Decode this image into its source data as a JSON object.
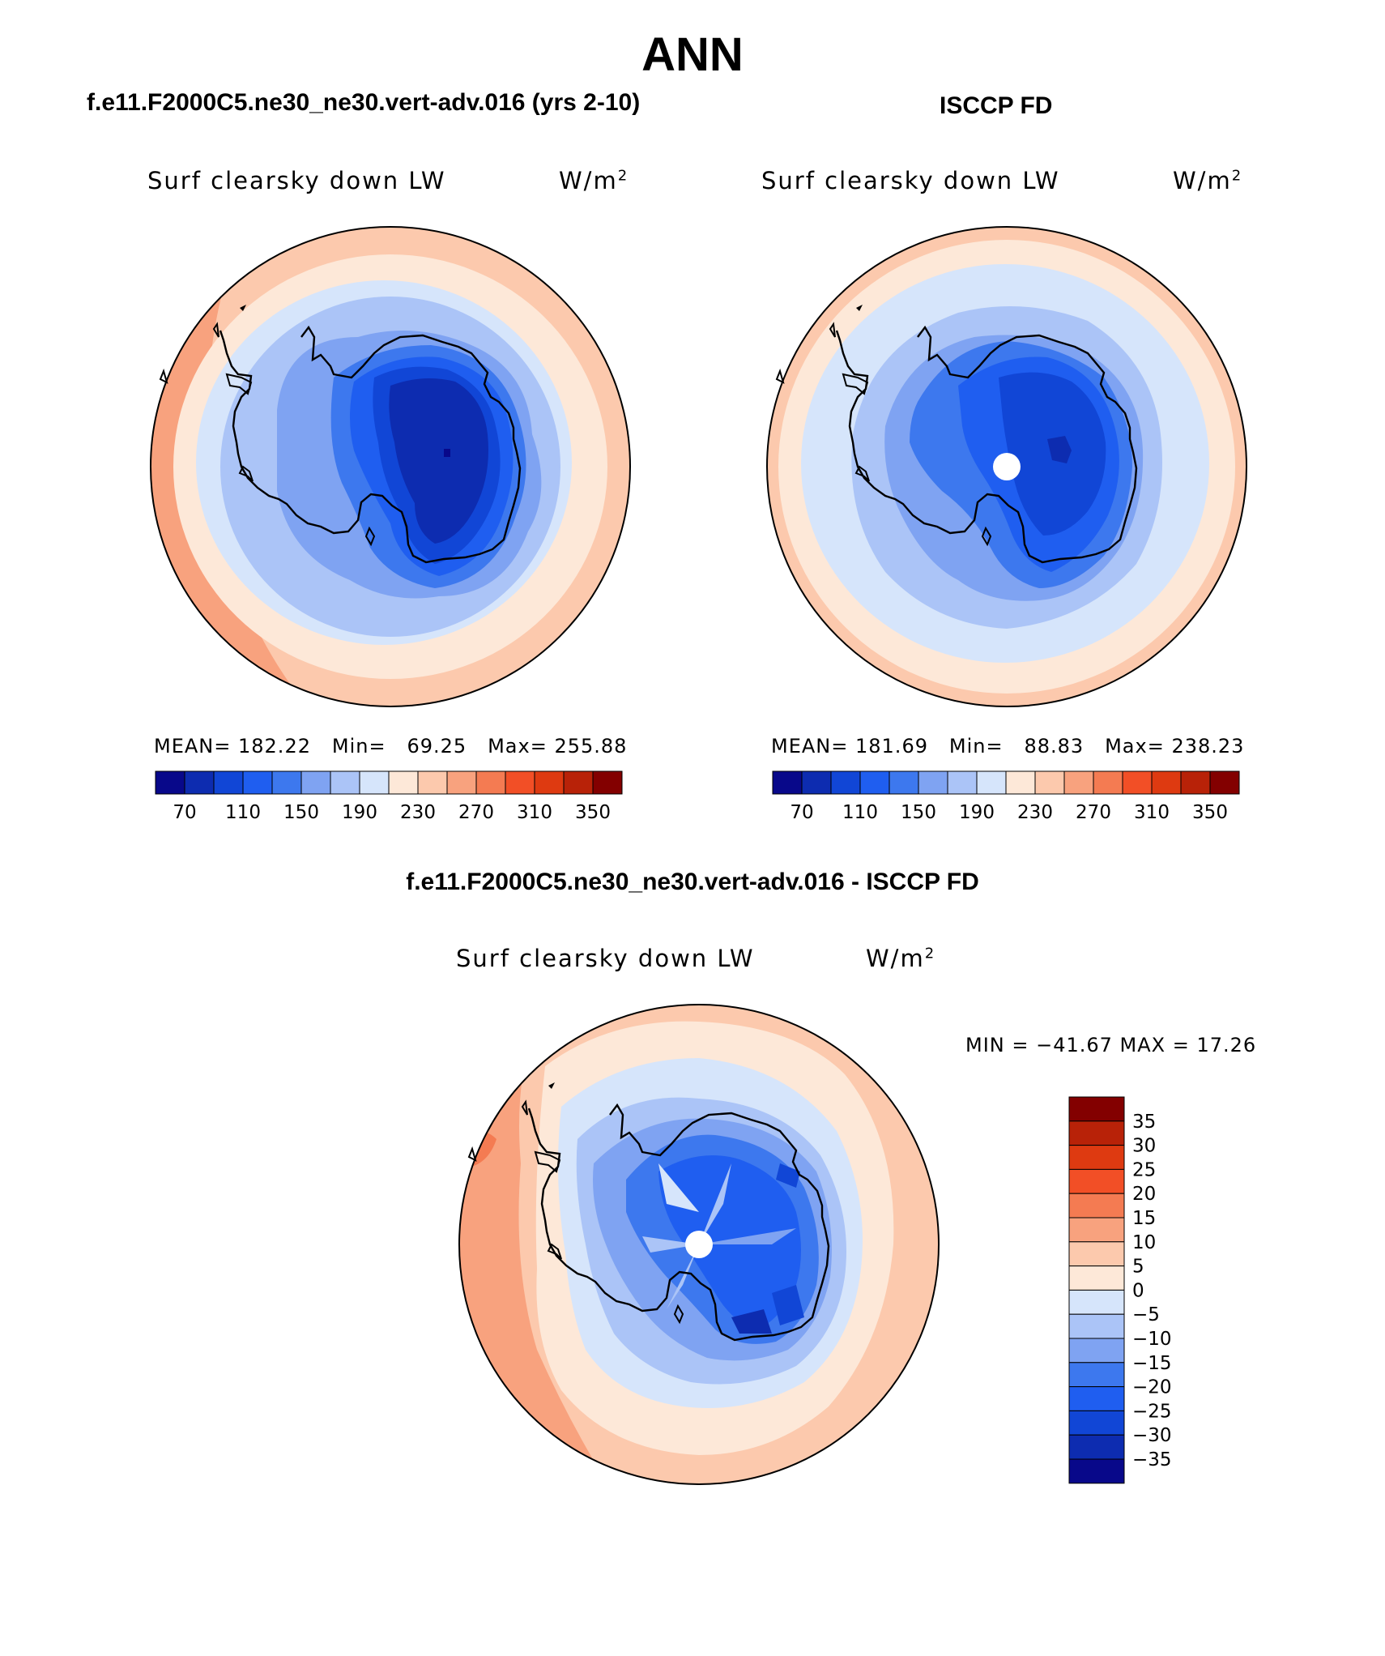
{
  "title": "ANN",
  "colors": {
    "abs_scale": [
      "#08088a",
      "#0d2cb0",
      "#1146d6",
      "#1f5ef0",
      "#3d78ee",
      "#7fa3f2",
      "#abc4f7",
      "#d6e5fb",
      "#fde8d8",
      "#fcc9ad",
      "#f8a27e",
      "#f47b52",
      "#f24f26",
      "#de3a11",
      "#b82208",
      "#830000"
    ],
    "diff_scale": [
      "#08088a",
      "#0d2cb0",
      "#1146d6",
      "#1f5ef0",
      "#3d78ee",
      "#7fa3f2",
      "#abc4f7",
      "#d6e5fb",
      "#fde8d8",
      "#fcc9ad",
      "#f8a27e",
      "#f47b52",
      "#f24f26",
      "#de3a11",
      "#b82208",
      "#830000"
    ],
    "land_outline": "#000000",
    "pole_mask": "#ffffff"
  },
  "panels": {
    "model": {
      "header": "f.e11.F2000C5.ne30_ne30.vert-adv.016 (yrs 2-10)",
      "variable": "Surf clearsky down LW",
      "units": "W/m",
      "units_exp": "2",
      "mean_label": "MEAN=",
      "mean_value": "182.22",
      "min_label": "Min=",
      "min_value": "69.25",
      "max_label": "Max=",
      "max_value": "255.88",
      "colorbar_ticks": [
        "70",
        "110",
        "150",
        "190",
        "230",
        "270",
        "310",
        "350"
      ]
    },
    "obs": {
      "header": "ISCCP FD",
      "variable": "Surf clearsky down LW",
      "units": "W/m",
      "units_exp": "2",
      "mean_label": "MEAN=",
      "mean_value": "181.69",
      "min_label": "Min=",
      "min_value": "88.83",
      "max_label": "Max=",
      "max_value": "238.23",
      "colorbar_ticks": [
        "70",
        "110",
        "150",
        "190",
        "230",
        "270",
        "310",
        "350"
      ]
    },
    "diff": {
      "header": "f.e11.F2000C5.ne30_ne30.vert-adv.016 - ISCCP FD",
      "variable": "Surf clearsky down LW",
      "units": "W/m",
      "units_exp": "2",
      "minmax_text": "MIN = −41.67 MAX =  17.26",
      "colorbar_ticks": [
        "35",
        "30",
        "25",
        "20",
        "15",
        "10",
        "5",
        "0",
        "−5",
        "−10",
        "−15",
        "−20",
        "−25",
        "−30",
        "−35"
      ]
    }
  }
}
